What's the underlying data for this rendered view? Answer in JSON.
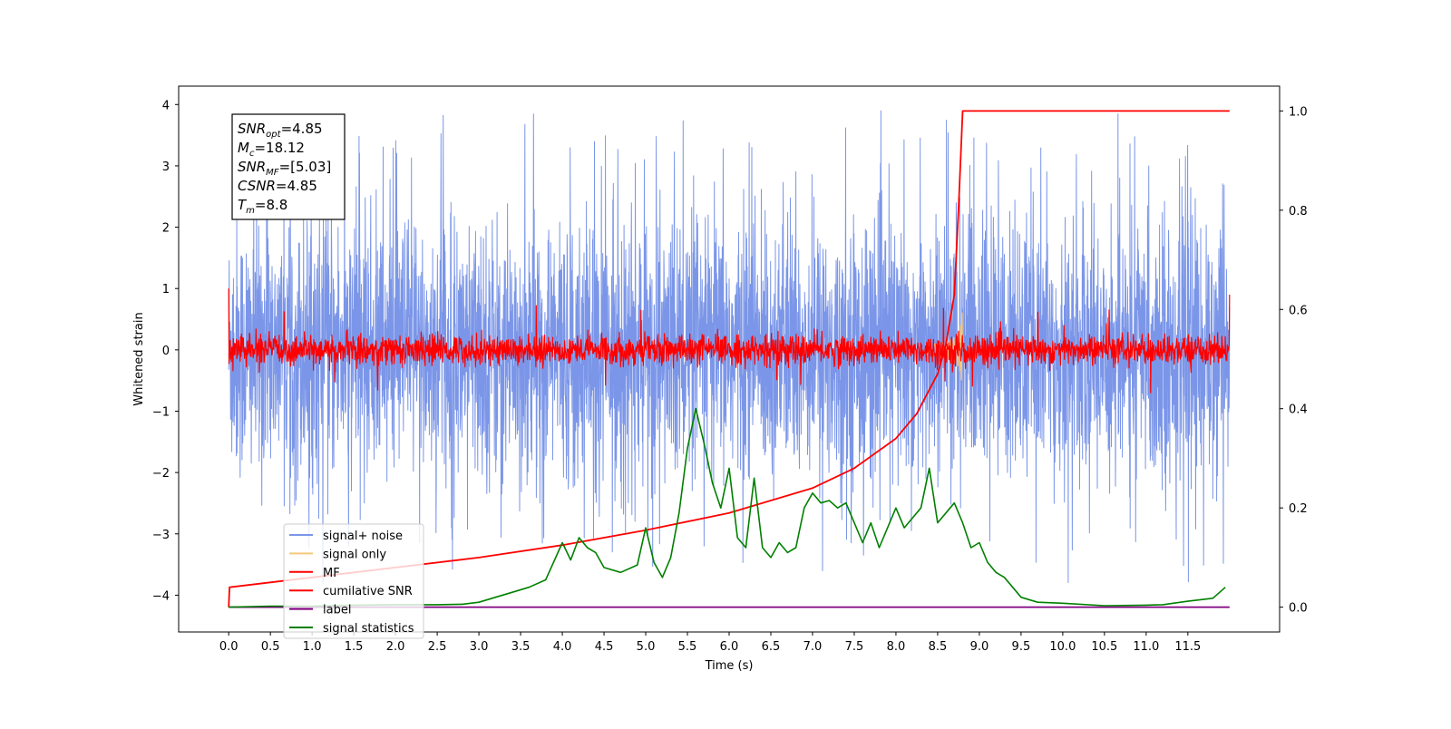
{
  "chart_data": {
    "type": "line",
    "xlabel": "Time (s)",
    "ylabel": "Whitened strain",
    "xlim": [
      -0.6,
      12.6
    ],
    "ylim": [
      -4.6,
      4.3
    ],
    "y2lim": [
      -0.05,
      1.05
    ],
    "x_ticks": [
      "0.0",
      "0.5",
      "1.0",
      "1.5",
      "2.0",
      "2.5",
      "3.0",
      "3.5",
      "4.0",
      "4.5",
      "5.0",
      "5.5",
      "6.0",
      "6.5",
      "7.0",
      "7.5",
      "8.0",
      "8.5",
      "9.0",
      "9.5",
      "10.0",
      "10.5",
      "11.0",
      "11.5"
    ],
    "y_ticks": [
      "4",
      "3",
      "2",
      "1",
      "0",
      "−1",
      "−2",
      "−3",
      "−4"
    ],
    "y2_ticks": [
      "1.0",
      "0.8",
      "0.6",
      "0.4",
      "0.2",
      "0.0"
    ],
    "grid": false,
    "legend_position": "lower-left",
    "annotation": {
      "lines": [
        {
          "sym": "SNR",
          "sub": "opt",
          "val": "=4.85"
        },
        {
          "sym": "M",
          "sub": "c",
          "val": "=18.12"
        },
        {
          "sym": "SNR",
          "sub": "MF",
          "val": "=[5.03]"
        },
        {
          "sym": "CSNR",
          "sub": "",
          "val": "=4.85"
        },
        {
          "sym": "T",
          "sub": "m",
          "val": "=8.8"
        }
      ]
    },
    "series": [
      {
        "name": "signal+ noise",
        "color": "#7b96e8",
        "axis": "left",
        "kind": "noise",
        "center": 0.0,
        "spread": 1.1,
        "peak_max": 3.9,
        "peak_min": -4.1
      },
      {
        "name": "signal only",
        "color": "#f5c97a",
        "axis": "left",
        "kind": "chirp",
        "t_merge": 8.8,
        "amp_max": 0.85
      },
      {
        "name": "MF",
        "color": "#ff0000",
        "axis": "left",
        "kind": "noise",
        "center": 0.0,
        "spread": 0.12,
        "start_value": 1.0,
        "end_value": 0.9
      },
      {
        "name": "cumilative SNR",
        "color": "#ff0000",
        "axis": "right",
        "x": [
          0.0,
          0.01,
          1.0,
          2.0,
          3.0,
          4.0,
          5.0,
          6.0,
          7.0,
          7.5,
          8.0,
          8.25,
          8.5,
          8.6,
          8.7,
          8.75,
          8.8,
          12.0
        ],
        "y": [
          0.0,
          0.04,
          0.06,
          0.08,
          0.1,
          0.125,
          0.155,
          0.19,
          0.24,
          0.28,
          0.34,
          0.39,
          0.47,
          0.53,
          0.63,
          0.8,
          1.0,
          1.0
        ]
      },
      {
        "name": "label",
        "color": "#800080",
        "axis": "right",
        "x": [
          0.0,
          12.0
        ],
        "y": [
          0.0,
          0.0
        ]
      },
      {
        "name": "signal statistics",
        "color": "#008000",
        "axis": "right",
        "x": [
          0.0,
          0.5,
          1.0,
          1.5,
          2.0,
          2.5,
          2.8,
          3.0,
          3.2,
          3.4,
          3.6,
          3.8,
          4.0,
          4.1,
          4.2,
          4.3,
          4.4,
          4.5,
          4.7,
          4.9,
          5.0,
          5.1,
          5.2,
          5.3,
          5.4,
          5.5,
          5.6,
          5.7,
          5.8,
          5.9,
          6.0,
          6.1,
          6.2,
          6.3,
          6.4,
          6.5,
          6.6,
          6.7,
          6.8,
          6.9,
          7.0,
          7.1,
          7.2,
          7.3,
          7.4,
          7.5,
          7.6,
          7.7,
          7.8,
          7.9,
          8.0,
          8.1,
          8.2,
          8.3,
          8.4,
          8.5,
          8.6,
          8.7,
          8.8,
          8.9,
          9.0,
          9.1,
          9.2,
          9.3,
          9.4,
          9.5,
          9.7,
          10.0,
          10.5,
          11.0,
          11.2,
          11.5,
          11.8,
          11.95
        ],
        "y": [
          0.0,
          0.002,
          0.002,
          0.004,
          0.005,
          0.005,
          0.006,
          0.01,
          0.02,
          0.03,
          0.04,
          0.055,
          0.13,
          0.095,
          0.14,
          0.12,
          0.11,
          0.08,
          0.07,
          0.085,
          0.16,
          0.09,
          0.06,
          0.1,
          0.19,
          0.32,
          0.4,
          0.33,
          0.25,
          0.2,
          0.28,
          0.14,
          0.12,
          0.26,
          0.12,
          0.1,
          0.13,
          0.11,
          0.12,
          0.2,
          0.23,
          0.21,
          0.215,
          0.2,
          0.21,
          0.17,
          0.13,
          0.17,
          0.12,
          0.16,
          0.2,
          0.16,
          0.18,
          0.2,
          0.28,
          0.17,
          0.19,
          0.21,
          0.17,
          0.12,
          0.13,
          0.09,
          0.07,
          0.06,
          0.04,
          0.02,
          0.01,
          0.008,
          0.003,
          0.004,
          0.005,
          0.012,
          0.018,
          0.04
        ]
      }
    ]
  }
}
